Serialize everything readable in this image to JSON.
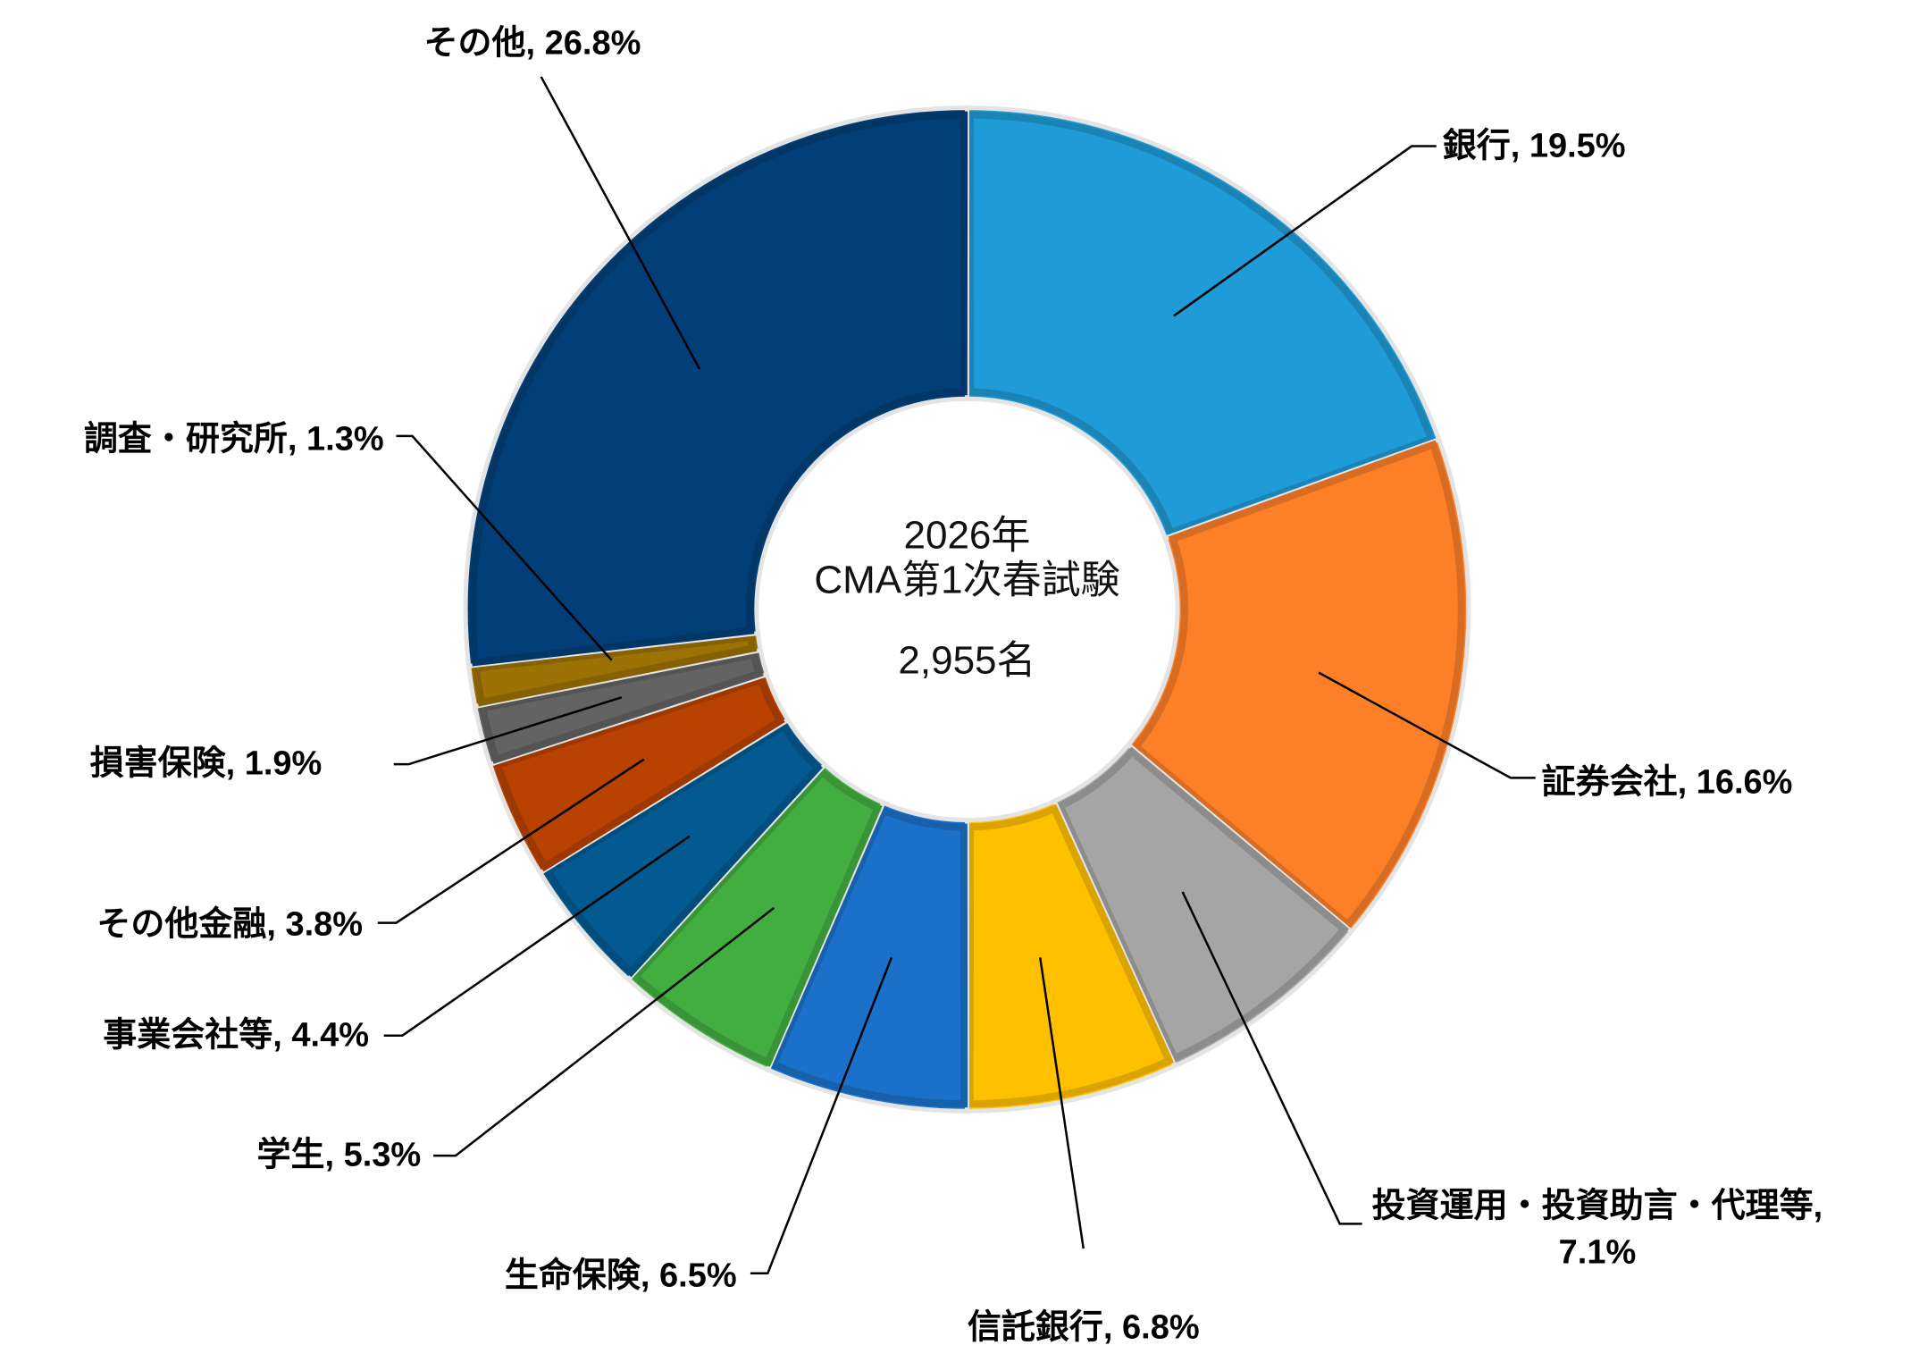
{
  "chart_data": {
    "type": "donut",
    "center_text": [
      "2026年",
      "CMA第1次春試験",
      "2,955名"
    ],
    "label_separator": ", ",
    "categories": [
      "銀行",
      "証券会社",
      "投資運用・投資助言・代理等",
      "信託銀行",
      "生命保険",
      "学生",
      "事業会社等",
      "その他金融",
      "損害保険",
      "調査・研究所",
      "その他"
    ],
    "values": [
      19.5,
      16.6,
      7.1,
      6.8,
      6.5,
      5.3,
      4.4,
      3.8,
      1.9,
      1.3,
      26.8
    ],
    "value_labels": [
      "19.5%",
      "16.6%",
      "7.1%",
      "6.8%",
      "6.5%",
      "5.3%",
      "4.4%",
      "3.8%",
      "1.9%",
      "1.3%",
      "26.8%"
    ],
    "colors": [
      "#1f9bd7",
      "#fd7f28",
      "#a5a5a5",
      "#ffc000",
      "#1b71c9",
      "#42ae3f",
      "#025a91",
      "#b84200",
      "#636363",
      "#9c7205",
      "#023f78"
    ]
  }
}
